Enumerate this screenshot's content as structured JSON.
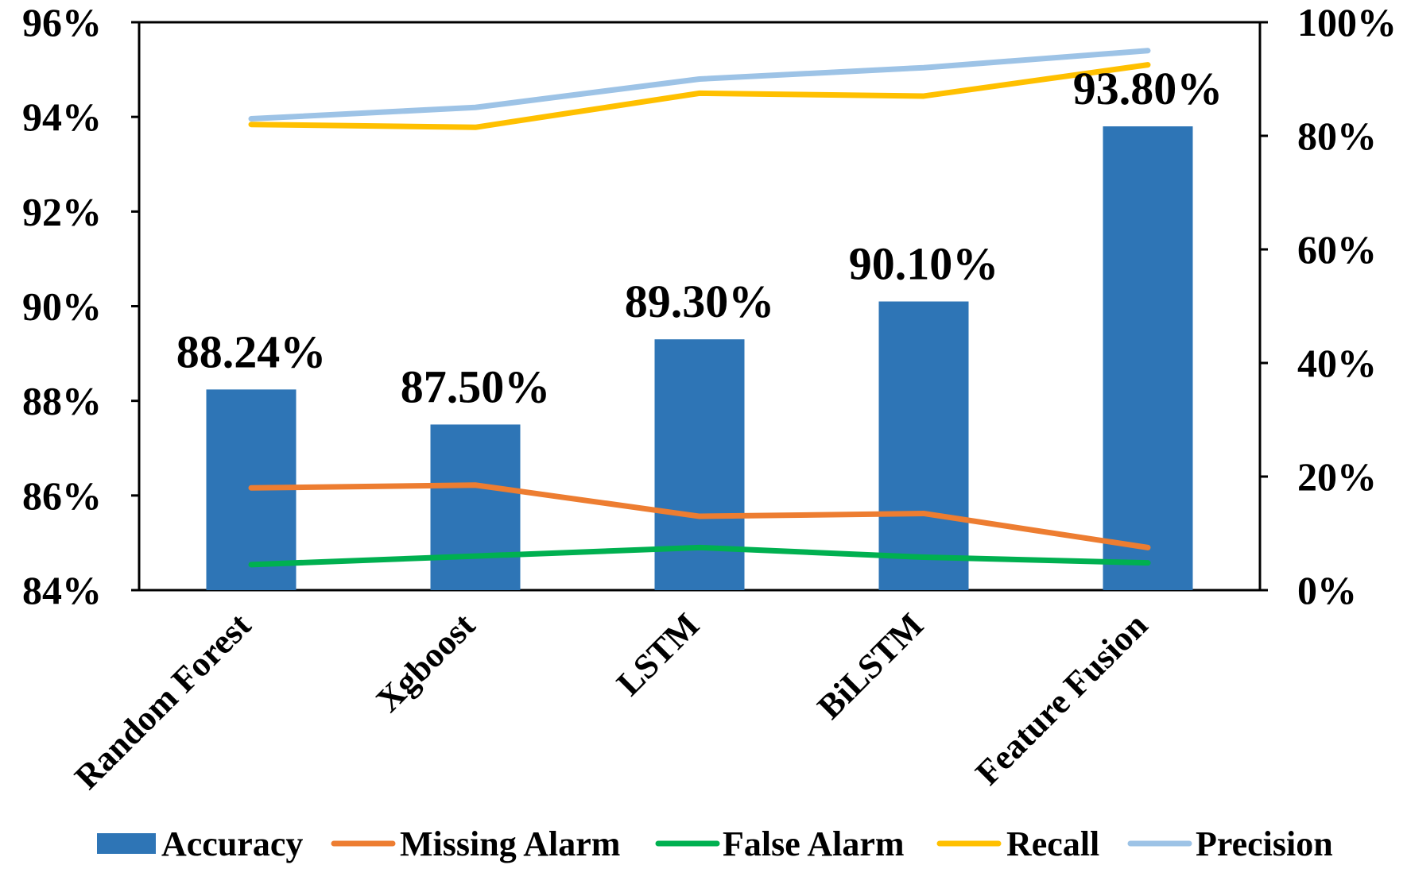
{
  "chart_data": {
    "type": "bar",
    "categories": [
      "Random Forest",
      "Xgboost",
      "LSTM",
      "BiLSTM",
      "Feature Fusion"
    ],
    "y_left": {
      "ylim": [
        0.84,
        0.96
      ],
      "ticks": [
        0.84,
        0.86,
        0.88,
        0.9,
        0.92,
        0.94,
        0.96
      ],
      "tick_labels": [
        "84%",
        "86%",
        "88%",
        "90%",
        "92%",
        "94%",
        "96%"
      ]
    },
    "y_right": {
      "ylim": [
        0,
        1.0
      ],
      "ticks": [
        0,
        0.2,
        0.4,
        0.6,
        0.8,
        1.0
      ],
      "tick_labels": [
        "0%",
        "20%",
        "40%",
        "60%",
        "80%",
        "100%"
      ]
    },
    "bar_series": {
      "name": "Accuracy",
      "axis": "left",
      "color": "#2E75B6",
      "values": [
        0.8824,
        0.875,
        0.893,
        0.901,
        0.938
      ],
      "data_labels": [
        "88.24%",
        "87.50%",
        "89.30%",
        "90.10%",
        "93.80%"
      ]
    },
    "line_series": [
      {
        "name": "Missing Alarm",
        "axis": "right",
        "color": "#ED7D31",
        "values": [
          0.18,
          0.185,
          0.13,
          0.135,
          0.075
        ]
      },
      {
        "name": "False Alarm",
        "axis": "right",
        "color": "#00B050",
        "values": [
          0.045,
          0.06,
          0.075,
          0.058,
          0.048
        ]
      },
      {
        "name": "Recall",
        "axis": "right",
        "color": "#FFC000",
        "values": [
          0.82,
          0.815,
          0.875,
          0.87,
          0.925
        ]
      },
      {
        "name": "Precision",
        "axis": "right",
        "color": "#9DC3E6",
        "values": [
          0.83,
          0.85,
          0.9,
          0.92,
          0.95
        ]
      }
    ],
    "grid": false,
    "legend_position": "bottom"
  }
}
